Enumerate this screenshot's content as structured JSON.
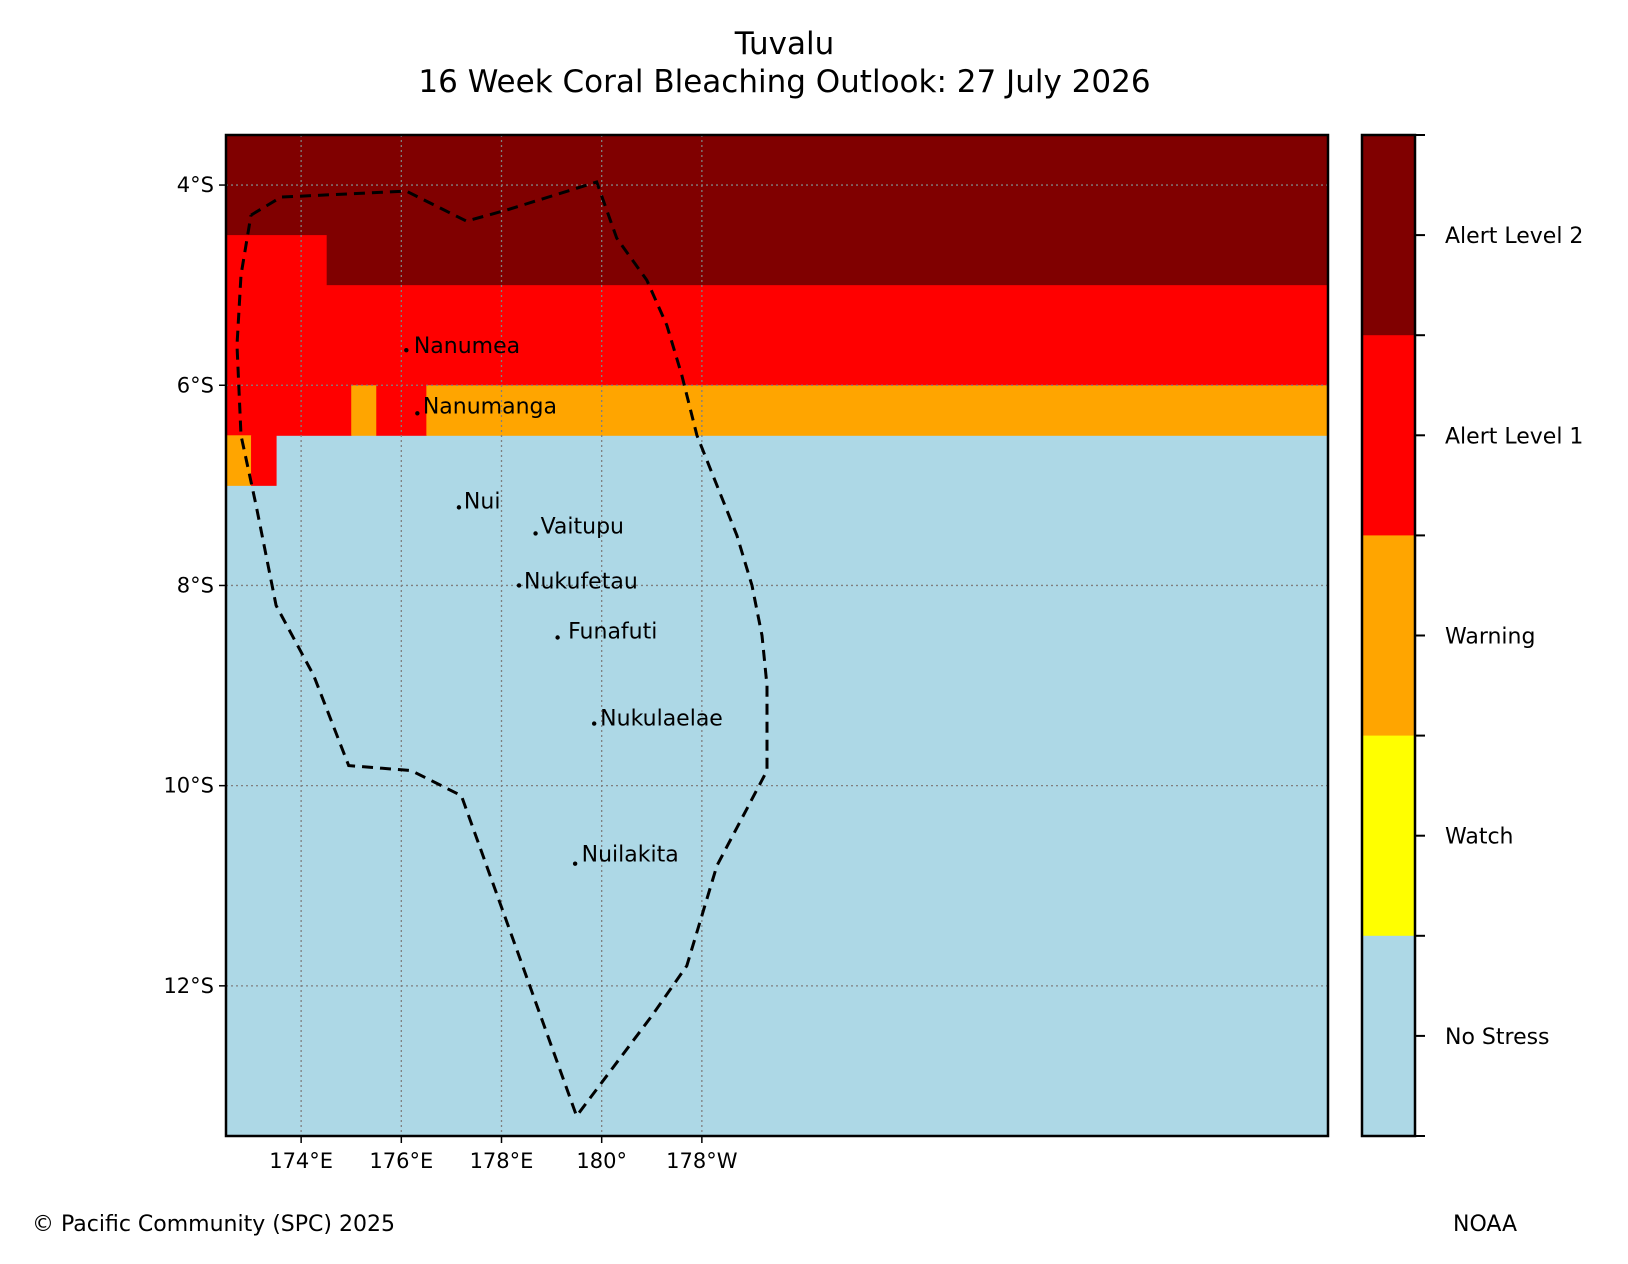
{
  "title": {
    "line1": "Tuvalu",
    "line2": "16 Week Coral Bleaching Outlook: 27 July 2026"
  },
  "map": {
    "extent": {
      "lon_min": 172.5,
      "lon_max": 194.5,
      "lat_min": -13.5,
      "lat_max": -3.5
    },
    "grid_step_deg": 0.5,
    "x_ticks": [
      {
        "lon": 174,
        "label": "174°E"
      },
      {
        "lon": 176,
        "label": "176°E"
      },
      {
        "lon": 178,
        "label": "178°E"
      },
      {
        "lon": 180,
        "label": "180°"
      },
      {
        "lon": 182,
        "label": "178°W"
      }
    ],
    "y_ticks": [
      {
        "lat": -4,
        "label": "4°S"
      },
      {
        "lat": -6,
        "label": "6°S"
      },
      {
        "lat": -8,
        "label": "8°S"
      },
      {
        "lat": -10,
        "label": "10°S"
      },
      {
        "lat": -12,
        "label": "12°S"
      }
    ],
    "stress_regions": [
      {
        "level": "Alert Level 2",
        "lon": [
          172.5,
          194.5
        ],
        "lat": [
          -4.5,
          -3.5
        ]
      },
      {
        "level": "Alert Level 2",
        "lon": [
          174.5,
          194.5
        ],
        "lat": [
          -5.0,
          -4.5
        ]
      },
      {
        "level": "Alert Level 1",
        "lon": [
          172.5,
          174.5
        ],
        "lat": [
          -5.0,
          -4.5
        ]
      },
      {
        "level": "Alert Level 1",
        "lon": [
          172.5,
          194.5
        ],
        "lat": [
          -6.0,
          -5.0
        ]
      },
      {
        "level": "Alert Level 1",
        "lon": [
          172.5,
          175.0
        ],
        "lat": [
          -6.5,
          -6.0
        ]
      },
      {
        "level": "Warning",
        "lon": [
          175.0,
          175.5
        ],
        "lat": [
          -6.5,
          -6.0
        ]
      },
      {
        "level": "Alert Level 1",
        "lon": [
          175.5,
          176.5
        ],
        "lat": [
          -6.5,
          -6.0
        ]
      },
      {
        "level": "Warning",
        "lon": [
          176.5,
          194.5
        ],
        "lat": [
          -6.5,
          -6.0
        ]
      },
      {
        "level": "Warning",
        "lon": [
          172.5,
          173.0
        ],
        "lat": [
          -7.0,
          -6.5
        ]
      },
      {
        "level": "Alert Level 1",
        "lon": [
          173.0,
          173.5
        ],
        "lat": [
          -7.0,
          -6.5
        ]
      }
    ],
    "eez_boundary": [
      [
        173.0,
        -4.3
      ],
      [
        173.6,
        -4.12
      ],
      [
        176.1,
        -4.06
      ],
      [
        177.3,
        -4.36
      ],
      [
        178.1,
        -4.25
      ],
      [
        179.9,
        -3.97
      ],
      [
        180.3,
        -4.53
      ],
      [
        180.9,
        -4.95
      ],
      [
        181.3,
        -5.4
      ],
      [
        181.6,
        -5.9
      ],
      [
        181.9,
        -6.5
      ],
      [
        182.3,
        -7.0
      ],
      [
        182.7,
        -7.5
      ],
      [
        183.0,
        -8.0
      ],
      [
        183.2,
        -8.5
      ],
      [
        183.3,
        -9.0
      ],
      [
        183.3,
        -9.85
      ],
      [
        182.3,
        -10.8
      ],
      [
        181.7,
        -11.8
      ],
      [
        181.0,
        -12.3
      ],
      [
        179.5,
        -13.3
      ],
      [
        177.2,
        -10.1
      ],
      [
        176.2,
        -9.85
      ],
      [
        174.95,
        -9.8
      ],
      [
        174.25,
        -8.9
      ],
      [
        173.5,
        -8.2
      ],
      [
        173.1,
        -7.2
      ],
      [
        172.8,
        -6.5
      ],
      [
        172.72,
        -5.6
      ],
      [
        172.8,
        -4.9
      ],
      [
        173.0,
        -4.3
      ]
    ],
    "islands": [
      {
        "name": "Nanumea",
        "lon": 176.1,
        "lat": -5.65,
        "label_lon": 176.25,
        "label_lat": -5.6
      },
      {
        "name": "Nanumanga",
        "lon": 176.32,
        "lat": -6.28,
        "label_lon": 176.43,
        "label_lat": -6.2
      },
      {
        "name": "Nui",
        "lon": 177.15,
        "lat": -7.22,
        "label_lon": 177.25,
        "label_lat": -7.15
      },
      {
        "name": "Vaitupu",
        "lon": 178.68,
        "lat": -7.48,
        "label_lon": 178.78,
        "label_lat": -7.4
      },
      {
        "name": "Nukufetau",
        "lon": 178.35,
        "lat": -8.0,
        "label_lon": 178.45,
        "label_lat": -7.95
      },
      {
        "name": "Funafuti",
        "lon": 179.12,
        "lat": -8.52,
        "label_lon": 179.33,
        "label_lat": -8.45
      },
      {
        "name": "Nukulaelae",
        "lon": 179.85,
        "lat": -9.38,
        "label_lon": 179.97,
        "label_lat": -9.32
      },
      {
        "name": "Nuilakita",
        "lon": 179.47,
        "lat": -10.78,
        "label_lon": 179.6,
        "label_lat": -10.68
      }
    ]
  },
  "legend": {
    "levels": [
      {
        "label": "Alert Level 2",
        "color": "#800000"
      },
      {
        "label": "Alert Level 1",
        "color": "#ff0000"
      },
      {
        "label": "Warning",
        "color": "#ffa500"
      },
      {
        "label": "Watch",
        "color": "#ffff00"
      },
      {
        "label": "No Stress",
        "color": "#add8e6"
      }
    ]
  },
  "colors": {
    "no_stress": "#add8e6",
    "boundary": "#000000",
    "gridline": "#808080"
  },
  "footer": {
    "left": "© Pacific Community (SPC) 2025",
    "right": "NOAA"
  }
}
